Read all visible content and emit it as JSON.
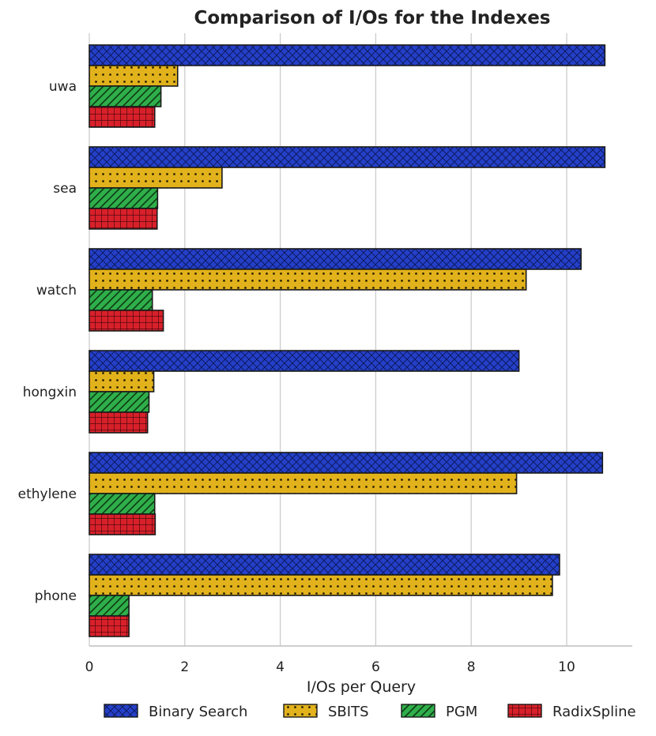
{
  "chart_data": {
    "type": "bar",
    "orientation": "horizontal",
    "title": "Comparison of I/Os for the Indexes",
    "xlabel": "I/Os per Query",
    "ylabel": "",
    "xlim": [
      0,
      11.4
    ],
    "xticks": [
      0,
      2,
      4,
      6,
      8,
      10
    ],
    "grid": true,
    "legend_position": "bottom-center",
    "categories": [
      "uwa",
      "sea",
      "watch",
      "hongxin",
      "ethylene",
      "phone"
    ],
    "series": [
      {
        "name": "Binary Search",
        "color": "#2440c8",
        "pattern": "crosshatch",
        "values": [
          10.8,
          10.8,
          10.3,
          9.0,
          10.75,
          9.85
        ]
      },
      {
        "name": "SBITS",
        "color": "#e2b21c",
        "pattern": "dots",
        "values": [
          1.85,
          2.78,
          9.15,
          1.35,
          8.95,
          9.7
        ]
      },
      {
        "name": "PGM",
        "color": "#2fae4a",
        "pattern": "diagonal",
        "values": [
          1.5,
          1.43,
          1.32,
          1.25,
          1.37,
          0.83
        ]
      },
      {
        "name": "RadixSpline",
        "color": "#d8202a",
        "pattern": "grid",
        "values": [
          1.37,
          1.42,
          1.55,
          1.22,
          1.38,
          0.83
        ]
      }
    ]
  }
}
